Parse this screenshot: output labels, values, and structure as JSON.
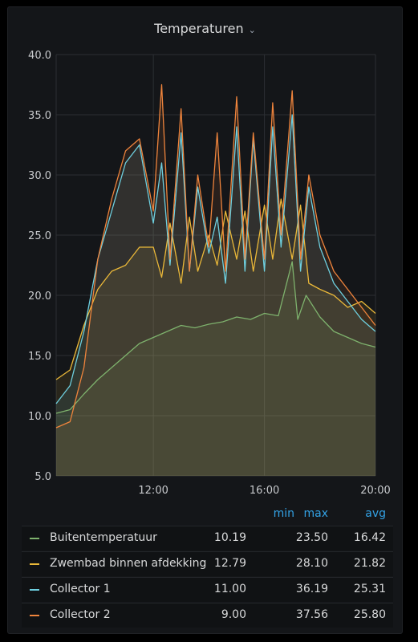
{
  "panel": {
    "title": "Temperaturen"
  },
  "legend": {
    "headers": {
      "min": "min",
      "max": "max",
      "avg": "avg"
    },
    "rows": [
      {
        "name": "Buitentemperatuur",
        "color": "#7eb26d",
        "min": "10.19",
        "max": "23.50",
        "avg": "16.42"
      },
      {
        "name": "Zwembad binnen afdekking",
        "color": "#eab839",
        "min": "12.79",
        "max": "28.10",
        "avg": "21.82"
      },
      {
        "name": "Collector 1",
        "color": "#6ed0e0",
        "min": "11.00",
        "max": "36.19",
        "avg": "25.31"
      },
      {
        "name": "Collector 2",
        "color": "#ef843c",
        "min": "9.00",
        "max": "37.56",
        "avg": "25.80"
      }
    ]
  },
  "chart_data": {
    "type": "area",
    "x_ticks": [
      "12:00",
      "16:00",
      "20:00"
    ],
    "y_ticks": [
      "5.0",
      "10.0",
      "15.0",
      "20.0",
      "25.0",
      "30.0",
      "35.0",
      "40.0"
    ],
    "ylim": [
      5,
      40
    ],
    "xlim_hours": [
      8.5,
      20.0
    ],
    "grid": true,
    "legend_position": "bottom",
    "series": [
      {
        "name": "Buitentemperatuur",
        "color": "#7eb26d",
        "x": [
          8.5,
          9.0,
          9.5,
          10.0,
          10.5,
          11.0,
          11.5,
          12.0,
          12.5,
          13.0,
          13.5,
          14.0,
          14.5,
          15.0,
          15.5,
          16.0,
          16.5,
          17.0,
          17.2,
          17.5,
          18.0,
          18.5,
          19.0,
          19.5,
          20.0
        ],
        "y": [
          10.2,
          10.5,
          11.8,
          13.0,
          14.0,
          15.0,
          16.0,
          16.5,
          17.0,
          17.5,
          17.3,
          17.6,
          17.8,
          18.2,
          18.0,
          18.5,
          18.3,
          22.8,
          18.0,
          20.0,
          18.2,
          17.0,
          16.5,
          16.0,
          15.7
        ]
      },
      {
        "name": "Zwembad binnen afdekking",
        "color": "#eab839",
        "x": [
          8.5,
          9.0,
          9.5,
          10.0,
          10.5,
          11.0,
          11.5,
          12.0,
          12.3,
          12.6,
          13.0,
          13.3,
          13.6,
          14.0,
          14.3,
          14.6,
          15.0,
          15.3,
          15.6,
          16.0,
          16.3,
          16.6,
          17.0,
          17.3,
          17.6,
          18.0,
          18.5,
          19.0,
          19.5,
          20.0
        ],
        "y": [
          13.0,
          13.8,
          17.5,
          20.5,
          22.0,
          22.5,
          24.0,
          24.0,
          21.5,
          26.0,
          21.0,
          26.5,
          22.0,
          25.0,
          22.5,
          27.0,
          23.0,
          27.0,
          22.0,
          27.5,
          23.0,
          28.0,
          23.0,
          27.5,
          21.0,
          20.5,
          20.0,
          19.0,
          19.5,
          18.5
        ]
      },
      {
        "name": "Collector 1",
        "color": "#6ed0e0",
        "x": [
          8.5,
          9.0,
          9.5,
          10.0,
          10.5,
          11.0,
          11.5,
          12.0,
          12.3,
          12.6,
          13.0,
          13.3,
          13.6,
          14.0,
          14.3,
          14.6,
          15.0,
          15.3,
          15.6,
          16.0,
          16.3,
          16.6,
          17.0,
          17.3,
          17.6,
          18.0,
          18.5,
          19.0,
          19.5,
          20.0
        ],
        "y": [
          11.0,
          12.5,
          17.0,
          23.0,
          27.0,
          31.0,
          32.5,
          26.0,
          31.0,
          22.5,
          33.5,
          22.0,
          29.0,
          23.5,
          26.5,
          21.0,
          34.0,
          22.0,
          33.0,
          22.0,
          34.0,
          24.0,
          35.0,
          22.0,
          29.0,
          24.0,
          21.0,
          19.5,
          18.0,
          17.0
        ]
      },
      {
        "name": "Collector 2",
        "color": "#ef843c",
        "x": [
          8.5,
          9.0,
          9.5,
          10.0,
          10.5,
          11.0,
          11.5,
          12.0,
          12.3,
          12.6,
          13.0,
          13.3,
          13.6,
          14.0,
          14.3,
          14.6,
          15.0,
          15.3,
          15.6,
          16.0,
          16.3,
          16.6,
          17.0,
          17.3,
          17.6,
          18.0,
          18.5,
          19.0,
          19.5,
          20.0
        ],
        "y": [
          9.0,
          9.5,
          14.0,
          23.0,
          28.0,
          32.0,
          33.0,
          27.0,
          37.5,
          23.0,
          35.5,
          22.0,
          30.0,
          24.0,
          33.5,
          22.0,
          36.5,
          23.0,
          33.5,
          23.0,
          36.0,
          25.0,
          37.0,
          23.0,
          30.0,
          25.0,
          22.0,
          20.5,
          19.0,
          17.5
        ]
      }
    ]
  }
}
